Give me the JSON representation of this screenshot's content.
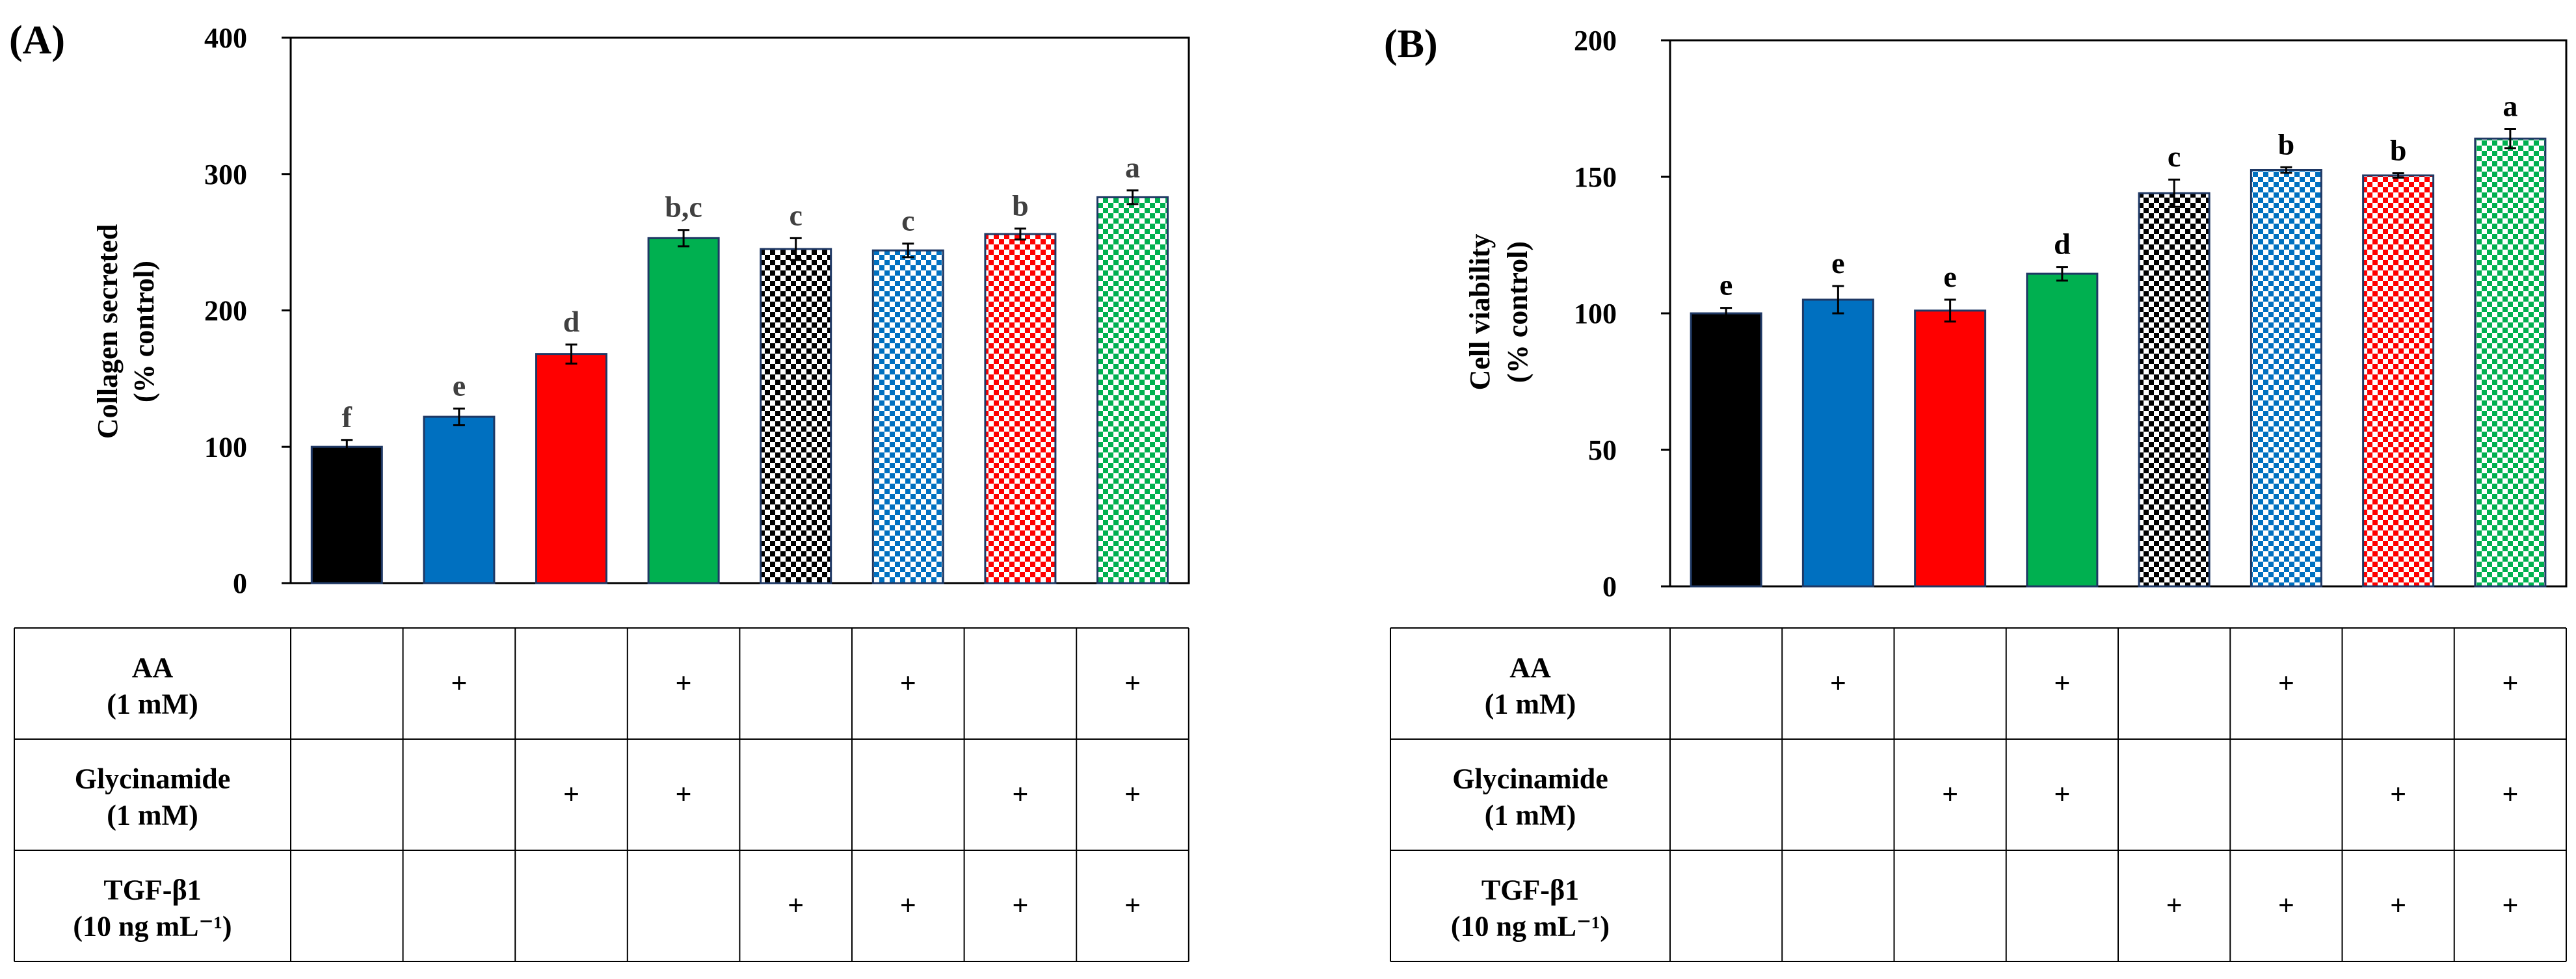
{
  "colors": {
    "black": "#000000",
    "blue": "#0070c0",
    "red": "#ff0000",
    "green": "#00b050",
    "bar_edge": "#1f3864",
    "letter_gray": "#404040"
  },
  "chart_data": [
    {
      "type": "bar",
      "panel_label": "(A)",
      "ylabel_line1": "Collagen secreted",
      "ylabel_line2": "(% control)",
      "ylim": [
        0,
        400
      ],
      "yticks": [
        "0",
        "100",
        "200",
        "300",
        "400"
      ],
      "ytick_values": [
        0,
        100,
        200,
        300,
        400
      ],
      "letter_color": "letter_gray",
      "bars": [
        {
          "value": 100,
          "error": 5,
          "letter": "f",
          "color": "black",
          "pattern": false
        },
        {
          "value": 122,
          "error": 6,
          "letter": "e",
          "color": "blue",
          "pattern": false
        },
        {
          "value": 168,
          "error": 7,
          "letter": "d",
          "color": "red",
          "pattern": false
        },
        {
          "value": 253,
          "error": 6,
          "letter": "b,c",
          "color": "green",
          "pattern": false
        },
        {
          "value": 245,
          "error": 8,
          "letter": "c",
          "color": "black",
          "pattern": true
        },
        {
          "value": 244,
          "error": 5,
          "letter": "c",
          "color": "blue",
          "pattern": true
        },
        {
          "value": 256,
          "error": 4,
          "letter": "b",
          "color": "red",
          "pattern": true
        },
        {
          "value": 283,
          "error": 5,
          "letter": "a",
          "color": "green",
          "pattern": true
        }
      ],
      "table": {
        "rows": [
          {
            "line1": "AA",
            "line2": "(1 mM)",
            "marks": [
              "",
              "+",
              "",
              "+",
              "",
              "+",
              "",
              "+"
            ]
          },
          {
            "line1": "Glycinamide",
            "line2": "(1 mM)",
            "marks": [
              "",
              "",
              "+",
              "+",
              "",
              "",
              "+",
              "+"
            ]
          },
          {
            "line1": "TGF-β1",
            "line2": "(10 ng mL⁻¹)",
            "marks": [
              "",
              "",
              "",
              "",
              "+",
              "+",
              "+",
              "+"
            ]
          }
        ]
      }
    },
    {
      "type": "bar",
      "panel_label": "(B)",
      "ylabel_line1": "Cell viability",
      "ylabel_line2": "(% control)",
      "ylim": [
        0,
        200
      ],
      "yticks": [
        "0",
        "50",
        "100",
        "150",
        "200"
      ],
      "ytick_values": [
        0,
        50,
        100,
        150,
        200
      ],
      "letter_color": "black",
      "bars": [
        {
          "value": 100,
          "error": 2,
          "letter": "e",
          "color": "black",
          "pattern": false
        },
        {
          "value": 105,
          "error": 5,
          "letter": "e",
          "color": "blue",
          "pattern": false
        },
        {
          "value": 101,
          "error": 4,
          "letter": "e",
          "color": "red",
          "pattern": false
        },
        {
          "value": 114.5,
          "error": 2.5,
          "letter": "d",
          "color": "green",
          "pattern": false
        },
        {
          "value": 144,
          "error": 5,
          "letter": "c",
          "color": "black",
          "pattern": true
        },
        {
          "value": 152.5,
          "error": 1,
          "letter": "b",
          "color": "blue",
          "pattern": true
        },
        {
          "value": 150.5,
          "error": 0.8,
          "letter": "b",
          "color": "red",
          "pattern": true
        },
        {
          "value": 164,
          "error": 3.5,
          "letter": "a",
          "color": "green",
          "pattern": true
        }
      ],
      "table": {
        "rows": [
          {
            "line1": "AA",
            "line2": "(1 mM)",
            "marks": [
              "",
              "+",
              "",
              "+",
              "",
              "+",
              "",
              "+"
            ]
          },
          {
            "line1": "Glycinamide",
            "line2": "(1 mM)",
            "marks": [
              "",
              "",
              "+",
              "+",
              "",
              "",
              "+",
              "+"
            ]
          },
          {
            "line1": "TGF-β1",
            "line2": "(10 ng mL⁻¹)",
            "marks": [
              "",
              "",
              "",
              "",
              "+",
              "+",
              "+",
              "+"
            ]
          }
        ]
      }
    }
  ]
}
